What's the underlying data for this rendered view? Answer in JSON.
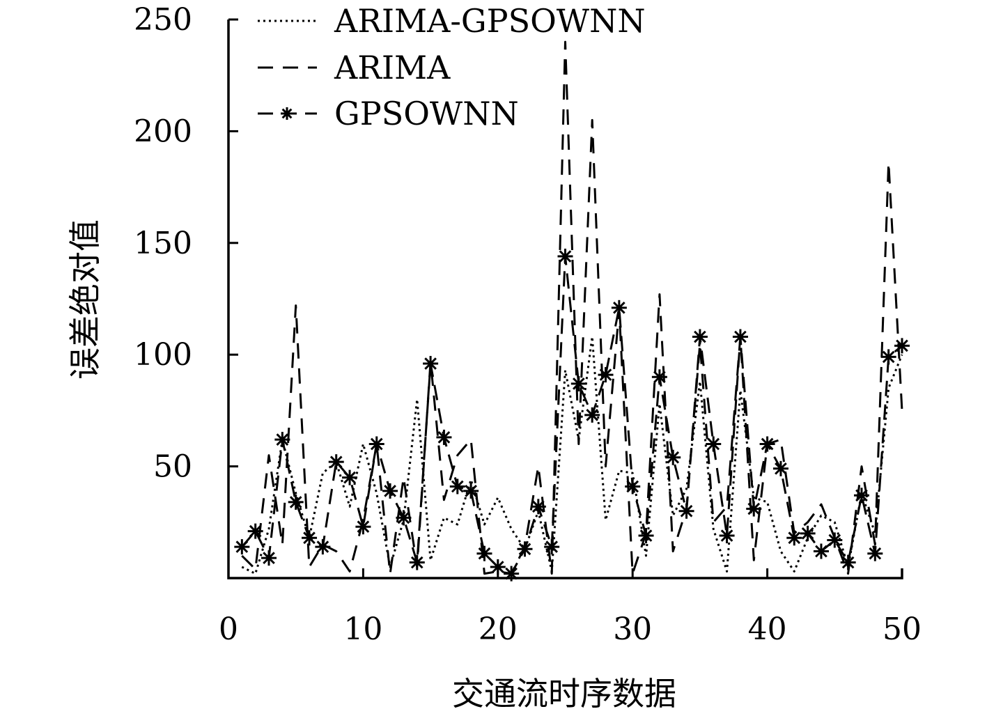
{
  "chart_data": {
    "type": "line",
    "title": "",
    "xlabel": "交通流时序数据",
    "ylabel": "误差绝对值",
    "xlim": [
      0,
      50
    ],
    "ylim": [
      0,
      250
    ],
    "xticks": [
      0,
      10,
      20,
      30,
      40,
      50
    ],
    "yticks": [
      50,
      100,
      150,
      200,
      250
    ],
    "grid": false,
    "legend_position": "top-left",
    "x": [
      1,
      2,
      3,
      4,
      5,
      6,
      7,
      8,
      9,
      10,
      11,
      12,
      13,
      14,
      15,
      16,
      17,
      18,
      19,
      20,
      21,
      22,
      23,
      24,
      25,
      26,
      27,
      28,
      29,
      30,
      31,
      32,
      33,
      34,
      35,
      36,
      37,
      38,
      39,
      40,
      41,
      42,
      43,
      44,
      45,
      46,
      47,
      48,
      49,
      50
    ],
    "series": [
      {
        "name": "ARIMA-GPSOWNN",
        "style": "dotted",
        "values": [
          5,
          2,
          22,
          62,
          38,
          18,
          47,
          52,
          32,
          60,
          38,
          5,
          26,
          80,
          8,
          27,
          24,
          44,
          24,
          36,
          22,
          13,
          30,
          3,
          93,
          62,
          108,
          26,
          48,
          47,
          10,
          78,
          28,
          40,
          88,
          22,
          3,
          84,
          36,
          34,
          12,
          3,
          18,
          28,
          25,
          5,
          38,
          20,
          85,
          100
        ]
      },
      {
        "name": "ARIMA",
        "style": "dashed",
        "values": [
          10,
          4,
          55,
          15,
          122,
          5,
          15,
          12,
          3,
          26,
          60,
          2,
          45,
          5,
          97,
          35,
          55,
          62,
          2,
          3,
          2,
          14,
          50,
          2,
          240,
          60,
          205,
          50,
          120,
          2,
          20,
          127,
          12,
          31,
          105,
          25,
          32,
          108,
          8,
          60,
          62,
          20,
          25,
          33,
          18,
          2,
          50,
          15,
          186,
          75
        ]
      },
      {
        "name": "GPSOWNN",
        "style": "dash-star",
        "values": [
          14,
          21,
          9,
          62,
          34,
          18,
          14,
          52,
          45,
          23,
          60,
          39,
          27,
          7,
          96,
          63,
          41,
          39,
          11,
          5,
          2,
          13,
          32,
          14,
          144,
          87,
          73,
          91,
          121,
          41,
          19,
          90,
          54,
          30,
          108,
          60,
          19,
          108,
          31,
          60,
          49,
          18,
          20,
          12,
          17,
          7,
          37,
          11,
          99,
          104
        ]
      }
    ]
  }
}
